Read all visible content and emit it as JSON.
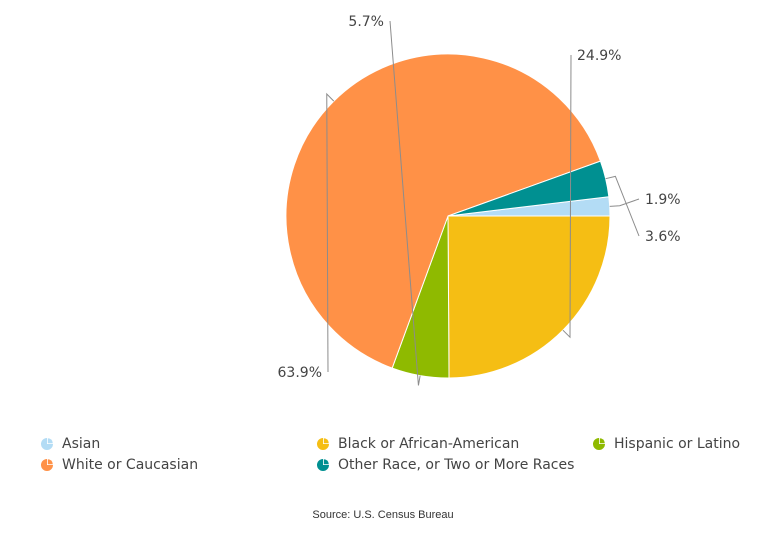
{
  "chart_data": {
    "type": "pie",
    "slices": [
      {
        "name": "Asian",
        "value": 1.9,
        "label": "1.9%",
        "color": "#b3dcf5"
      },
      {
        "name": "Black or African-American",
        "value": 24.9,
        "label": "24.9%",
        "color": "#f5be14"
      },
      {
        "name": "Hispanic or Latino",
        "value": 5.7,
        "label": "5.7%",
        "color": "#8fba00"
      },
      {
        "name": "White or Caucasian",
        "value": 63.9,
        "label": "63.9%",
        "color": "#ff9147"
      },
      {
        "name": "Other Race, or Two or More Races",
        "value": 3.6,
        "label": "3.6%",
        "color": "#009091"
      }
    ],
    "legend_placement": "bottom"
  },
  "legend": {
    "items": [
      {
        "name": "Asian",
        "color": "#b3dcf5"
      },
      {
        "name": "Black or African-American",
        "color": "#f5be14"
      },
      {
        "name": "Hispanic or Latino",
        "color": "#8fba00"
      },
      {
        "name": "White or Caucasian",
        "color": "#ff9147"
      },
      {
        "name": "Other Race, or Two or More Races",
        "color": "#009091"
      }
    ]
  },
  "source": "Source: U.S. Census Bureau"
}
